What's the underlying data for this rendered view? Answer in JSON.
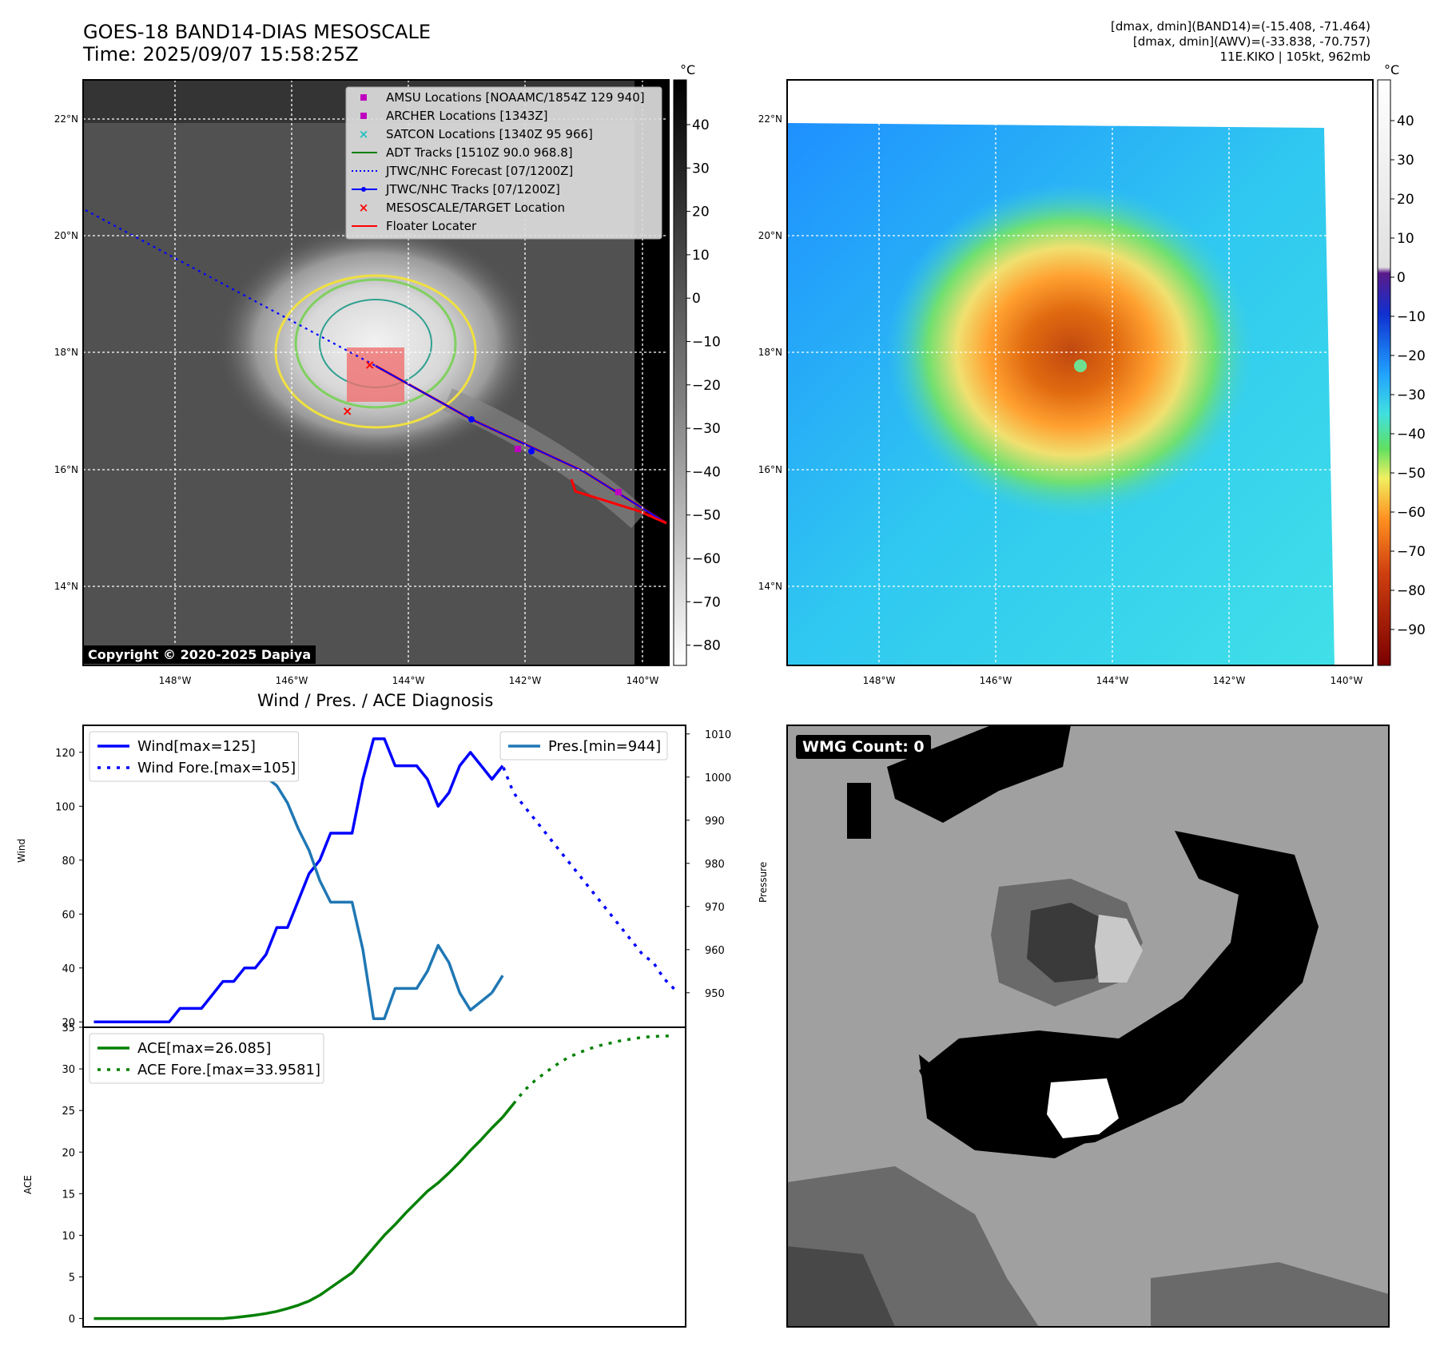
{
  "header": {
    "title_line1": "GOES-18 BAND14-DIAS MESOSCALE",
    "title_line2": "Time: 2025/09/07 15:58:25Z",
    "info_line1": "[dmax, dmin](BAND14)=(-15.408, -71.464)",
    "info_line2": "[dmax, dmin](AWV)=(-33.838, -70.757)",
    "info_line3": "11E.KIKO | 105kt, 962mb"
  },
  "map_axes": {
    "lat_labels": [
      "22°N",
      "20°N",
      "18°N",
      "16°N",
      "14°N"
    ],
    "lon_labels": [
      "148°W",
      "146°W",
      "144°W",
      "142°W",
      "140°W"
    ]
  },
  "ir_panel": {
    "colorbar_unit": "°C",
    "colorbar_ticks": [
      "40",
      "30",
      "20",
      "10",
      "0",
      "−10",
      "−20",
      "−30",
      "−40",
      "−50",
      "−60",
      "−70",
      "−80"
    ],
    "copyright": "Copyright © 2020-2025 Dapiya",
    "legend": [
      {
        "label": "AMSU Locations [NOAAMC/1854Z 129 940]",
        "marker": "square",
        "color": "#c000c0"
      },
      {
        "label": "ARCHER Locations [1343Z]",
        "marker": "square",
        "color": "#c000c0"
      },
      {
        "label": "SATCON Locations [1340Z 95 966]",
        "marker": "x",
        "color": "#20c0c0"
      },
      {
        "label": "ADT Tracks [1510Z 90.0 968.8]",
        "marker": "line",
        "color": "#008000"
      },
      {
        "label": "JTWC/NHC Forecast [07/1200Z]",
        "marker": "dotted",
        "color": "#0000ff"
      },
      {
        "label": "JTWC/NHC Tracks [07/1200Z]",
        "marker": "line-dot",
        "color": "#0000ff"
      },
      {
        "label": "MESOSCALE/TARGET Location",
        "marker": "x",
        "color": "#ff0000"
      },
      {
        "label": "Floater Locater",
        "marker": "line",
        "color": "#ff0000"
      }
    ]
  },
  "awv_panel": {
    "colorbar_unit": "°C",
    "colorbar_ticks": [
      "40",
      "30",
      "20",
      "10",
      "0",
      "−10",
      "−20",
      "−30",
      "−40",
      "−50",
      "−60",
      "−70",
      "−80",
      "−90"
    ]
  },
  "wmg_panel": {
    "label": "WMG Count: 0"
  },
  "chart_data": [
    {
      "type": "line",
      "title": "Wind / Pres. / ACE Diagnosis",
      "ylabel": "Wind",
      "ylabel_right": "Pressure",
      "ylim": [
        18,
        130
      ],
      "ylim_right": [
        942,
        1012
      ],
      "yticks": [
        20,
        40,
        60,
        80,
        100,
        120
      ],
      "yticks_right": [
        950,
        960,
        970,
        980,
        990,
        1000,
        1010
      ],
      "xlim": [
        -1,
        55
      ],
      "series": [
        {
          "name": "Wind[max=125]",
          "axis": "left",
          "color": "#0000ff",
          "style": "solid",
          "x": [
            0,
            1,
            2,
            3,
            4,
            5,
            6,
            7,
            8,
            9,
            10,
            11,
            12,
            13,
            14,
            15,
            16,
            17,
            18,
            19,
            20,
            21,
            22,
            23,
            24,
            25,
            26,
            27,
            28,
            29,
            30,
            31,
            32,
            33,
            34,
            35,
            36
          ],
          "y": [
            20,
            20,
            20,
            20,
            20,
            20,
            20,
            20,
            25,
            25,
            25,
            30,
            35,
            35,
            40,
            40,
            45,
            55,
            55,
            65,
            75,
            80,
            90,
            90,
            90,
            110,
            125,
            125,
            115,
            115,
            115,
            110,
            100,
            105,
            115,
            120,
            115
          ]
        },
        {
          "name": "",
          "axis": "left",
          "color": "#0000ff",
          "style": "solid",
          "x": [
            36,
            37,
            38
          ],
          "y": [
            115,
            110,
            115
          ]
        },
        {
          "name": "Wind Fore.[max=105]",
          "axis": "left",
          "color": "#0000ff",
          "style": "dotted",
          "x": [
            37,
            38,
            39,
            40,
            41,
            42,
            43,
            44,
            45,
            46,
            47,
            48,
            49,
            50,
            51,
            52,
            53,
            54
          ],
          "y": [
            110,
            115,
            105,
            100,
            95,
            90,
            85,
            80,
            75,
            70,
            65,
            60,
            55,
            50,
            45,
            42,
            36,
            32
          ]
        },
        {
          "name": "Pres.[min=944]",
          "axis": "right",
          "color": "#1f77b4",
          "style": "solid",
          "x": [
            0,
            1,
            2,
            3,
            4,
            5,
            6,
            7,
            8,
            9,
            10,
            11,
            12,
            13,
            14,
            15,
            16,
            17,
            18,
            19,
            20,
            21,
            22,
            23,
            24,
            25,
            26,
            27,
            28,
            29,
            30,
            31,
            32,
            33,
            34,
            35,
            36,
            37
          ],
          "y": [
            1010,
            1010,
            1010,
            1010,
            1010,
            1010,
            1010,
            1010,
            1010,
            1009,
            1009,
            1008,
            1007,
            1005,
            1004,
            1001,
            1000,
            998,
            994,
            988,
            983,
            976,
            971,
            971,
            971,
            960,
            944,
            944,
            951,
            951,
            951,
            955,
            961,
            957,
            950,
            946,
            948,
            950
          ]
        },
        {
          "name": "",
          "axis": "right",
          "color": "#1f77b4",
          "style": "solid",
          "x": [
            37,
            38
          ],
          "y": [
            950,
            954
          ]
        }
      ],
      "legend_left": [
        "Wind[max=125]",
        "Wind Fore.[max=105]"
      ],
      "legend_right": [
        "Pres.[min=944]"
      ]
    },
    {
      "type": "line",
      "ylabel": "ACE",
      "ylim": [
        -1,
        35
      ],
      "yticks": [
        0,
        5,
        10,
        15,
        20,
        25,
        30,
        35
      ],
      "xlim": [
        -1,
        55
      ],
      "series": [
        {
          "name": "ACE[max=26.085]",
          "color": "#008000",
          "style": "solid",
          "x": [
            0,
            3,
            6,
            9,
            12,
            13,
            14,
            15,
            16,
            17,
            18,
            19,
            20,
            21,
            22,
            23,
            24,
            25,
            26,
            27,
            28,
            29,
            30,
            31,
            32,
            33,
            34,
            35,
            36,
            37,
            38
          ],
          "y": [
            0,
            0,
            0,
            0,
            0,
            0.1,
            0.25,
            0.4,
            0.6,
            0.85,
            1.2,
            1.6,
            2.1,
            2.8,
            3.7,
            4.6,
            5.5,
            7.0,
            8.5,
            10.0,
            11.3,
            12.7,
            14.0,
            15.3,
            16.3,
            17.5,
            18.8,
            20.2,
            21.5,
            22.9,
            24.2
          ]
        },
        {
          "name": "",
          "color": "#008000",
          "style": "solid",
          "x": [
            38,
            39
          ],
          "y": [
            24.2,
            25.8
          ]
        },
        {
          "name": "ACE Fore.[max=33.9581]",
          "color": "#008000",
          "style": "dotted",
          "x": [
            39,
            40,
            41,
            42,
            43,
            44,
            45,
            46,
            47,
            48,
            49,
            50,
            51,
            52,
            53,
            54
          ],
          "y": [
            25.8,
            27.4,
            28.6,
            29.6,
            30.5,
            31.3,
            31.9,
            32.4,
            32.8,
            33.1,
            33.4,
            33.6,
            33.8,
            33.9,
            33.95,
            33.96
          ]
        }
      ],
      "legend": [
        "ACE[max=26.085]",
        "ACE Fore.[max=33.9581]"
      ]
    }
  ]
}
